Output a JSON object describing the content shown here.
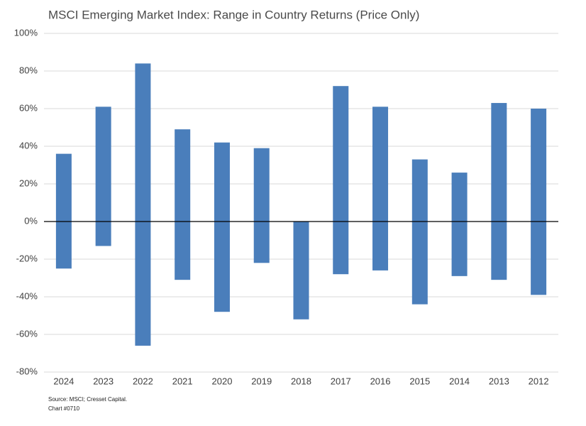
{
  "chart_data": {
    "type": "floating-bar",
    "title": "MSCI Emerging Market Index: Range in Country Returns (Price Only)",
    "categories": [
      "2024",
      "2023",
      "2022",
      "2021",
      "2020",
      "2019",
      "2018",
      "2017",
      "2016",
      "2015",
      "2014",
      "2013",
      "2012"
    ],
    "low": [
      -25,
      -13,
      -66,
      -31,
      -48,
      -22,
      -52,
      -28,
      -26,
      -44,
      -29,
      -31,
      -39
    ],
    "high": [
      36,
      61,
      84,
      49,
      42,
      39,
      0,
      72,
      61,
      33,
      26,
      63,
      60
    ],
    "color": "#4a7ebb",
    "ylim": [
      -80,
      100
    ],
    "yticks": [
      {
        "value": -80,
        "label": "-80%"
      },
      {
        "value": -60,
        "label": "-60%"
      },
      {
        "value": -40,
        "label": "-40%"
      },
      {
        "value": -20,
        "label": "-20%"
      },
      {
        "value": 0,
        "label": "0%"
      },
      {
        "value": 20,
        "label": "20%"
      },
      {
        "value": 40,
        "label": "40%"
      },
      {
        "value": 60,
        "label": "60%"
      },
      {
        "value": 80,
        "label": "80%"
      },
      {
        "value": 100,
        "label": "100%"
      }
    ],
    "grid": true,
    "notes": [
      "Source: MSCI; Cresset Capital.",
      "Chart #0710"
    ]
  }
}
